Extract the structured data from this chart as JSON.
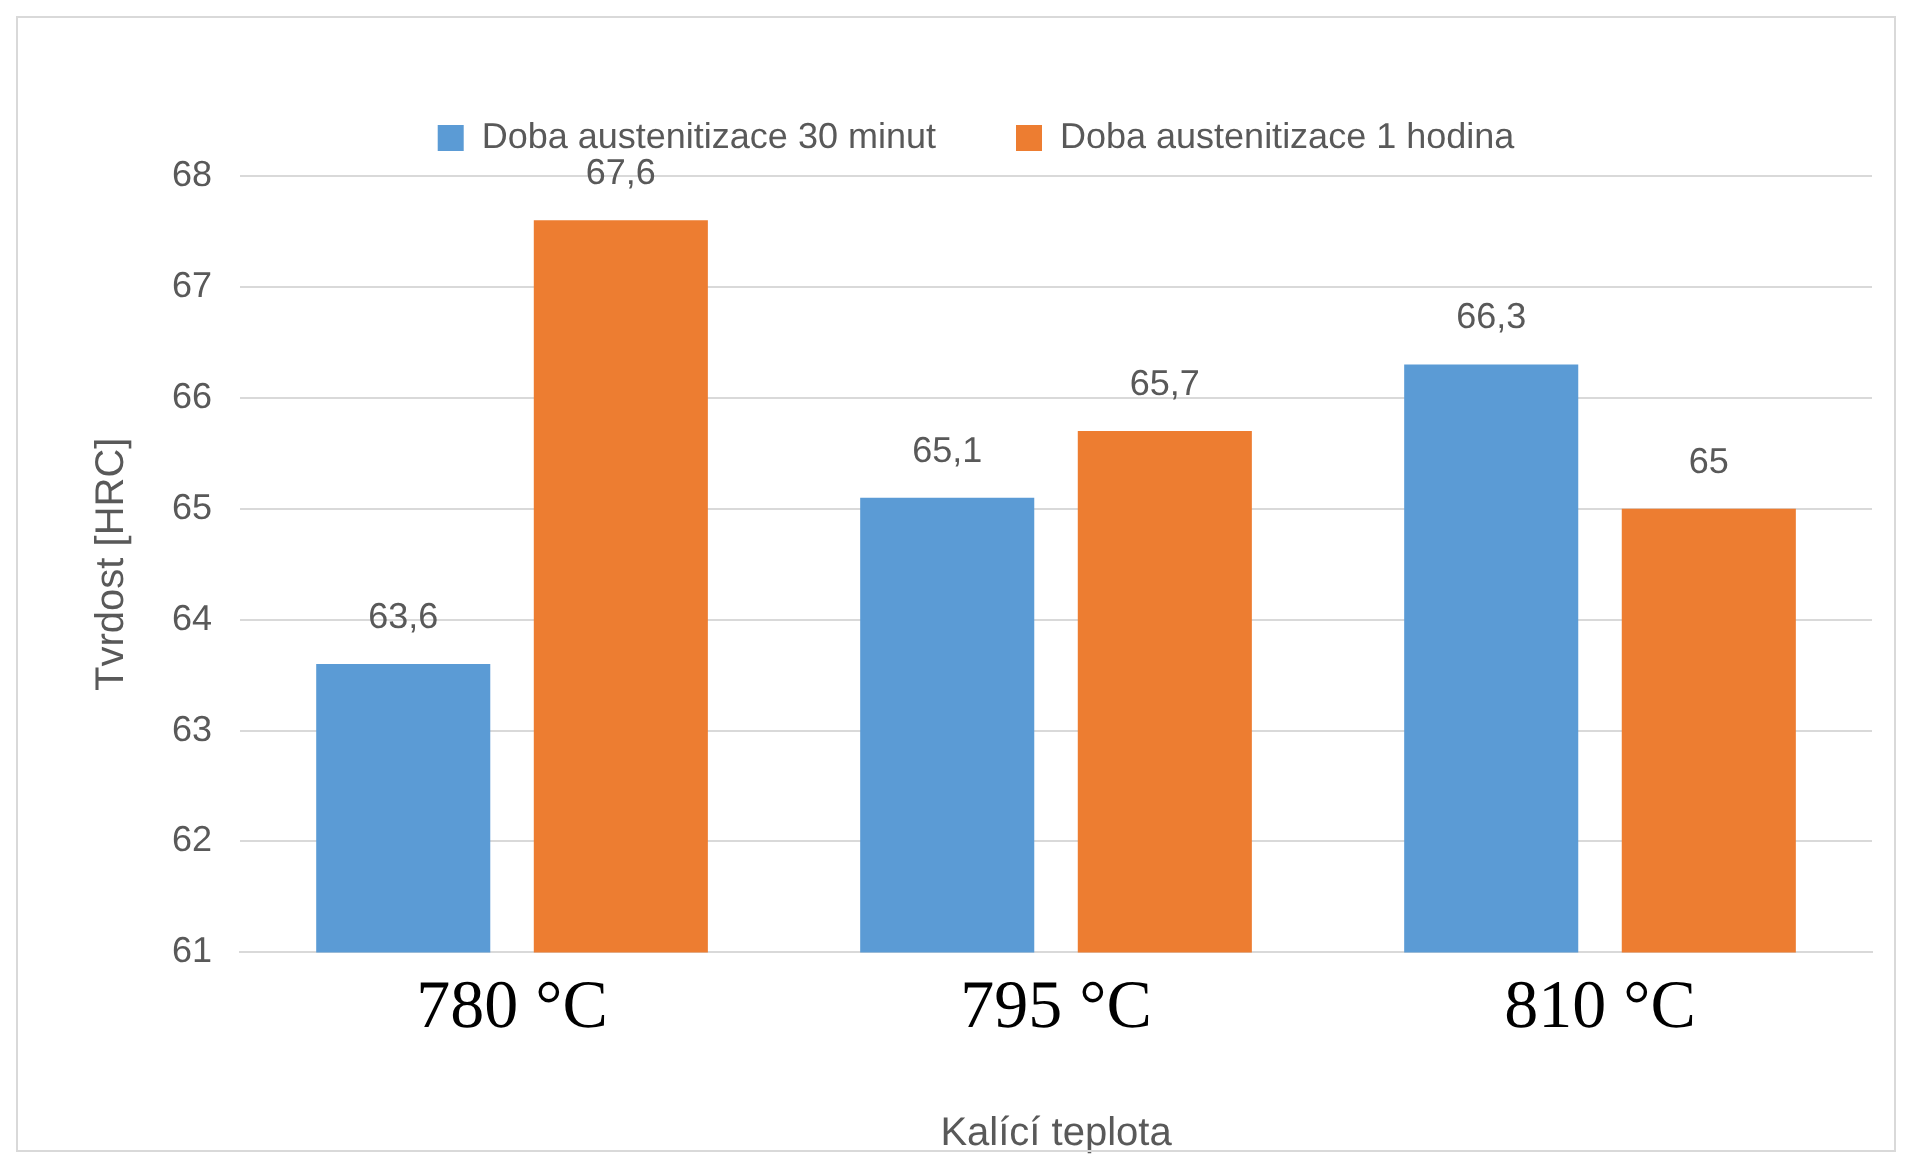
{
  "chart_data": {
    "type": "bar",
    "xlabel": "Kalící teplota",
    "ylabel": "Tvrdost [HRC]",
    "categories": [
      "780 °C",
      "795 °C",
      "810 °C"
    ],
    "series": [
      {
        "name": "Doba austenitizace 30 minut",
        "color": "#5b9bd5",
        "values": [
          63.6,
          65.1,
          66.3
        ],
        "value_labels": [
          "63,6",
          "65,1",
          "66,3"
        ]
      },
      {
        "name": "Doba austenitizace 1 hodina",
        "color": "#ed7d31",
        "values": [
          67.6,
          65.7,
          65.0
        ],
        "value_labels": [
          "67,6",
          "65,7",
          "65"
        ]
      }
    ],
    "ylim": [
      61,
      68
    ],
    "yticks": [
      61,
      62,
      63,
      64,
      65,
      66,
      67,
      68
    ],
    "grid": "y",
    "legend": "top"
  }
}
